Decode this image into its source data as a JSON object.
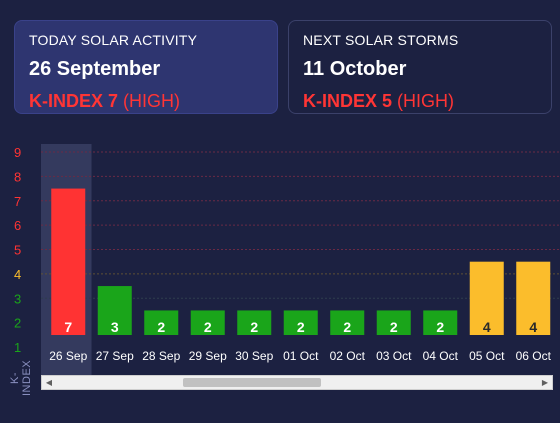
{
  "cards": {
    "today": {
      "title": "TODAY SOLAR ACTIVITY",
      "date": "26 September",
      "kindex_label": "K-INDEX 7",
      "level": "(HIGH)"
    },
    "next": {
      "title": "NEXT SOLAR STORMS",
      "date": "11 October",
      "kindex_label": "K-INDEX 5",
      "level": "(HIGH)"
    }
  },
  "axis_label": "K-INDEX",
  "colors": {
    "background": "#1c2141",
    "high": "#ff3333",
    "moderate": "#fbbd2c",
    "low": "#1aa51a",
    "selected_column": "#343a5e"
  },
  "chart_data": {
    "type": "bar",
    "categories": [
      "26 Sep",
      "27 Sep",
      "28 Sep",
      "29 Sep",
      "30 Sep",
      "01 Oct",
      "02 Oct",
      "03 Oct",
      "04 Oct",
      "05 Oct",
      "06 Oct"
    ],
    "values": [
      7,
      3,
      2,
      2,
      2,
      2,
      2,
      2,
      2,
      4,
      4
    ],
    "bar_levels": [
      "high",
      "low",
      "low",
      "low",
      "low",
      "low",
      "low",
      "low",
      "low",
      "moderate",
      "moderate"
    ],
    "y_ticks": [
      "1",
      "2",
      "3",
      "4",
      "5",
      "6",
      "7",
      "8",
      "9"
    ],
    "y_tick_levels": [
      "low",
      "low",
      "low",
      "moderate",
      "high",
      "high",
      "high",
      "high",
      "high"
    ],
    "ylabel": "K-INDEX",
    "ylim": [
      1,
      9
    ],
    "selected_category": "26 Sep",
    "grid": true
  }
}
